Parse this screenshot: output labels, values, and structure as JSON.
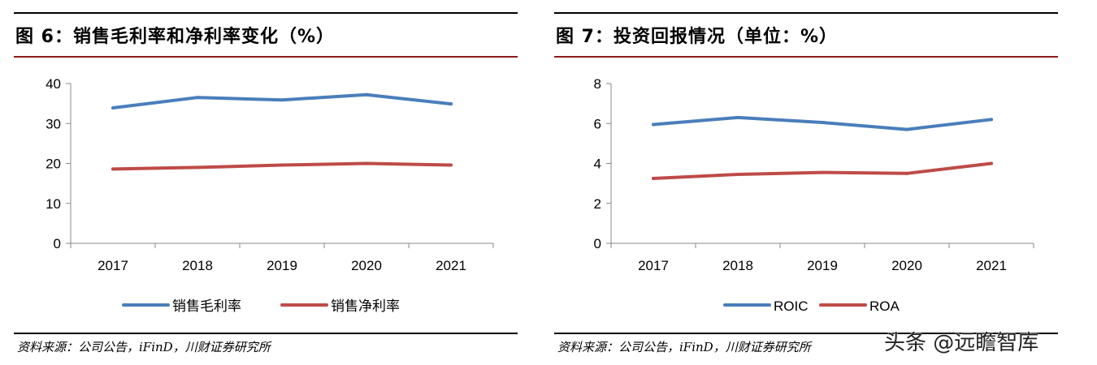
{
  "panels": [
    {
      "title": "图 6：销售毛利率和净利率变化（%）",
      "source": "资料来源：公司公告，iFinD，川财证券研究所",
      "chart_data": {
        "type": "line",
        "title": "",
        "xlabel": "",
        "ylabel": "",
        "categories": [
          "2017",
          "2018",
          "2019",
          "2020",
          "2021"
        ],
        "ylim": [
          0,
          40
        ],
        "yticks": [
          "0",
          "10",
          "20",
          "30",
          "40"
        ],
        "grid": false,
        "legend_position": "bottom",
        "series": [
          {
            "name": "销售毛利率",
            "color": "#4a7ebb",
            "values": [
              33.9,
              36.5,
              35.9,
              37.2,
              34.9
            ]
          },
          {
            "name": "销售净利率",
            "color": "#be4b48",
            "values": [
              18.6,
              19.0,
              19.6,
              20.0,
              19.6
            ]
          }
        ]
      }
    },
    {
      "title": "图 7：投资回报情况（单位：%）",
      "source": "资料来源：公司公告，iFinD，川财证券研究所",
      "chart_data": {
        "type": "line",
        "title": "",
        "xlabel": "",
        "ylabel": "",
        "categories": [
          "2017",
          "2018",
          "2019",
          "2020",
          "2021"
        ],
        "ylim": [
          0,
          8
        ],
        "yticks": [
          "0",
          "2",
          "4",
          "6",
          "8"
        ],
        "grid": false,
        "legend_position": "bottom",
        "series": [
          {
            "name": "ROIC",
            "color": "#4a7ebb",
            "values": [
              5.95,
              6.3,
              6.05,
              5.7,
              6.2
            ]
          },
          {
            "name": "ROA",
            "color": "#be4b48",
            "values": [
              3.25,
              3.45,
              3.55,
              3.5,
              4.0
            ]
          }
        ]
      }
    }
  ],
  "watermark": "头条 @远瞻智库"
}
